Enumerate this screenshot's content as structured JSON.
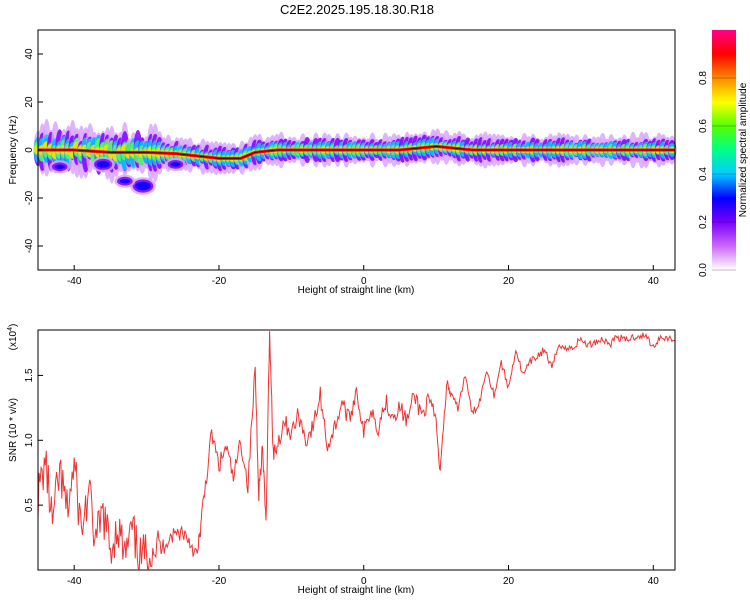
{
  "title": "C2E2.2025.195.18.30.R18",
  "colors": {
    "snr_line": "#ee3333",
    "ridge": "#ff0000",
    "axes": "#000000"
  },
  "chart_data": [
    {
      "type": "heatmap",
      "xlabel": "Height of straight line (km)",
      "ylabel": "Frequency (Hz)",
      "xlim": [
        -45,
        43
      ],
      "ylim": [
        -50,
        50
      ],
      "xticks": [
        -40,
        -20,
        0,
        20,
        40
      ],
      "yticks": [
        -40,
        -20,
        0,
        20,
        40
      ],
      "colorbar": {
        "label": "Normalized spectral amplitude",
        "ticks": [
          0.0,
          0.2,
          0.4,
          0.6,
          0.8
        ],
        "range": [
          0,
          1
        ],
        "colormap": [
          "#ffffff",
          "#cc66ff",
          "#7700ff",
          "#0000ff",
          "#00ccff",
          "#00ff88",
          "#55ff00",
          "#ffff00",
          "#ff8800",
          "#ff0000",
          "#ff0088"
        ]
      },
      "ridge": {
        "x": [
          -45,
          -40,
          -35,
          -30,
          -26,
          -23,
          -20,
          -17,
          -15,
          -12,
          -5,
          0,
          5,
          10,
          15,
          20,
          30,
          43
        ],
        "y": [
          0,
          0,
          -1,
          -1,
          -1.5,
          -2.5,
          -3.5,
          -3.5,
          -1,
          0,
          0,
          0,
          0,
          1.5,
          0,
          0,
          0,
          0
        ]
      }
    },
    {
      "type": "line",
      "xlabel": "Height of straight line (km)",
      "ylabel": "SNR (10 * v/v)",
      "ylabel_multiplier": "(x10",
      "ylabel_exponent": "4",
      "ylabel_close": ")",
      "xlim": [
        -45,
        43
      ],
      "ylim": [
        0.0,
        1.85
      ],
      "xticks": [
        -40,
        -20,
        0,
        20,
        40
      ],
      "yticks": [
        0.5,
        1.0,
        1.5
      ],
      "ytick_labels": [
        "0.5",
        "1.0",
        "1.5"
      ],
      "series": [
        {
          "x": [
            -45,
            -44,
            -43,
            -42,
            -41,
            -40,
            -39,
            -38,
            -37,
            -36,
            -35,
            -34,
            -33,
            -32,
            -31,
            -30,
            -29,
            -28,
            -27,
            -26,
            -25,
            -24,
            -23,
            -22.5,
            -22,
            -21,
            -20,
            -19,
            -18,
            -17,
            -16,
            -15,
            -14.5,
            -14,
            -13.5,
            -13,
            -12.5,
            -12,
            -11,
            -10,
            -9,
            -8,
            -7,
            -6,
            -5,
            -4,
            -3,
            -2,
            -1,
            0,
            1,
            2,
            3,
            4,
            5,
            6,
            7,
            8,
            9,
            10,
            10.5,
            11,
            11.5,
            12,
            13,
            14,
            15,
            16,
            17,
            18,
            19,
            20,
            21,
            22,
            23,
            24,
            25,
            26,
            27,
            28,
            29,
            30,
            31,
            32,
            33,
            34,
            35,
            36,
            37,
            38,
            39,
            40,
            41,
            42,
            43
          ],
          "y": [
            0.55,
            0.85,
            0.35,
            0.75,
            0.45,
            0.8,
            0.3,
            0.6,
            0.2,
            0.45,
            0.15,
            0.35,
            0.1,
            0.3,
            0.08,
            0.12,
            0.2,
            0.15,
            0.25,
            0.28,
            0.3,
            0.22,
            0.1,
            0.35,
            0.6,
            1.05,
            0.8,
            0.95,
            0.7,
            1.0,
            0.65,
            1.55,
            0.6,
            0.95,
            0.35,
            1.85,
            0.9,
            0.95,
            1.15,
            1.05,
            1.2,
            1.0,
            1.1,
            1.35,
            0.95,
            1.1,
            1.3,
            1.15,
            1.4,
            1.05,
            1.25,
            1.1,
            1.3,
            1.2,
            1.25,
            1.15,
            1.35,
            1.2,
            1.3,
            1.15,
            0.75,
            1.1,
            1.45,
            1.35,
            1.25,
            1.5,
            1.2,
            1.3,
            1.55,
            1.35,
            1.6,
            1.4,
            1.7,
            1.5,
            1.6,
            1.65,
            1.7,
            1.55,
            1.75,
            1.7,
            1.72,
            1.78,
            1.73,
            1.76,
            1.78,
            1.74,
            1.8,
            1.77,
            1.79,
            1.81,
            1.8,
            1.72,
            1.8,
            1.79,
            1.77
          ]
        }
      ]
    }
  ]
}
